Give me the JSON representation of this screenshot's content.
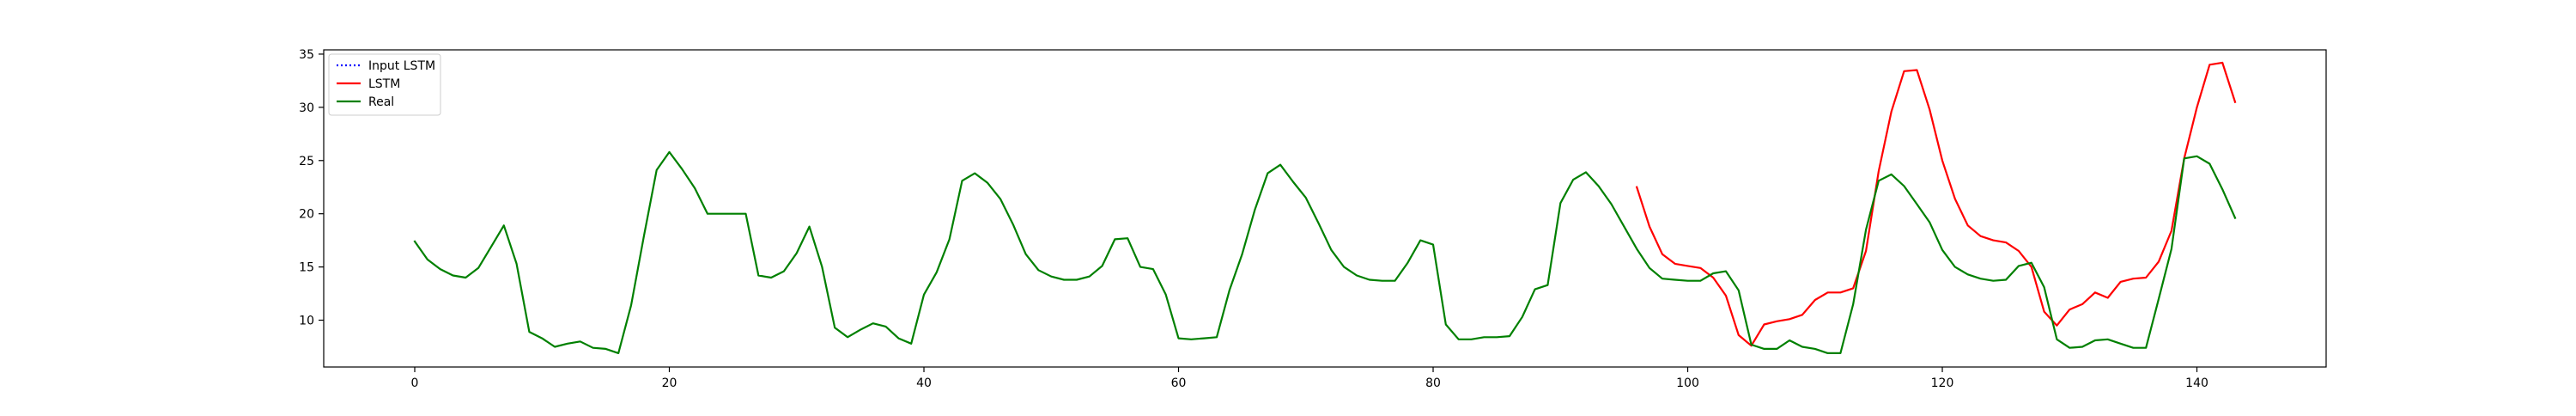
{
  "chart_data": {
    "type": "line",
    "title": "",
    "xlabel": "",
    "ylabel": "",
    "xlim": [
      -7.15,
      150.15
    ],
    "ylim": [
      5.6,
      35.4
    ],
    "x_ticks": [
      0,
      20,
      40,
      60,
      80,
      100,
      120,
      140
    ],
    "y_ticks": [
      10,
      15,
      20,
      25,
      30,
      35
    ],
    "grid": false,
    "legend": {
      "placement": "top-left"
    },
    "series": [
      {
        "name": "Input LSTM",
        "color": "#0000ff",
        "style": "dotted",
        "x": [],
        "y": []
      },
      {
        "name": "LSTM",
        "color": "#ff0000",
        "style": "solid",
        "x": [
          96,
          97,
          98,
          99,
          100,
          101,
          102,
          103,
          104,
          105,
          106,
          107,
          108,
          109,
          110,
          111,
          112,
          113,
          114,
          115,
          116,
          117,
          118,
          119,
          120,
          121,
          122,
          123,
          124,
          125,
          126,
          127,
          128,
          129,
          130,
          131,
          132,
          133,
          134,
          135,
          136,
          137,
          138,
          139,
          140,
          141,
          142,
          143
        ],
        "y": [
          22.5,
          18.8,
          16.2,
          15.3,
          15.1,
          14.9,
          14.0,
          12.3,
          8.6,
          7.6,
          9.6,
          9.9,
          10.1,
          10.5,
          11.9,
          12.6,
          12.6,
          13.0,
          16.5,
          24.0,
          29.6,
          33.4,
          33.5,
          29.8,
          25.0,
          21.4,
          18.9,
          17.9,
          17.5,
          17.3,
          16.5,
          15.0,
          10.8,
          9.5,
          11.0,
          11.5,
          12.6,
          12.1,
          13.6,
          13.9,
          14.0,
          15.5,
          18.4,
          25.2,
          30.0,
          34.0,
          34.2,
          30.5
        ]
      },
      {
        "name": "Real",
        "color": "#008000",
        "style": "solid",
        "x": [
          0,
          1,
          2,
          3,
          4,
          5,
          6,
          7,
          8,
          9,
          10,
          11,
          12,
          13,
          14,
          15,
          16,
          17,
          18,
          19,
          20,
          21,
          22,
          23,
          24,
          25,
          26,
          27,
          28,
          29,
          30,
          31,
          32,
          33,
          34,
          35,
          36,
          37,
          38,
          39,
          40,
          41,
          42,
          43,
          44,
          45,
          46,
          47,
          48,
          49,
          50,
          51,
          52,
          53,
          54,
          55,
          56,
          57,
          58,
          59,
          60,
          61,
          62,
          63,
          64,
          65,
          66,
          67,
          68,
          69,
          70,
          71,
          72,
          73,
          74,
          75,
          76,
          77,
          78,
          79,
          80,
          81,
          82,
          83,
          84,
          85,
          86,
          87,
          88,
          89,
          90,
          91,
          92,
          93,
          94,
          95,
          96,
          97,
          98,
          99,
          100,
          101,
          102,
          103,
          104,
          105,
          106,
          107,
          108,
          109,
          110,
          111,
          112,
          113,
          114,
          115,
          116,
          117,
          118,
          119,
          120,
          121,
          122,
          123,
          124,
          125,
          126,
          127,
          128,
          129,
          130,
          131,
          132,
          133,
          134,
          135,
          136,
          137,
          138,
          139,
          140,
          141,
          142,
          143
        ],
        "y": [
          17.4,
          15.7,
          14.8,
          14.2,
          14.0,
          14.9,
          16.9,
          18.9,
          15.3,
          8.9,
          8.3,
          7.5,
          7.8,
          8.0,
          7.4,
          7.3,
          6.9,
          11.4,
          17.9,
          24.1,
          25.8,
          24.2,
          22.4,
          20.0,
          20.0,
          20.0,
          20.0,
          14.2,
          14.0,
          14.6,
          16.3,
          18.8,
          15.0,
          9.3,
          8.4,
          9.1,
          9.7,
          9.4,
          8.3,
          7.8,
          12.4,
          14.5,
          17.6,
          23.1,
          23.8,
          22.9,
          21.4,
          19.0,
          16.2,
          14.7,
          14.1,
          13.8,
          13.8,
          14.1,
          15.1,
          17.6,
          17.7,
          15.0,
          14.8,
          12.4,
          8.3,
          8.2,
          8.3,
          8.4,
          12.8,
          16.2,
          20.4,
          23.8,
          24.6,
          23.0,
          21.5,
          19.1,
          16.6,
          15.0,
          14.2,
          13.8,
          13.7,
          13.7,
          15.4,
          17.5,
          17.1,
          9.6,
          8.2,
          8.2,
          8.4,
          8.4,
          8.5,
          10.3,
          12.9,
          13.3,
          21.0,
          23.2,
          23.9,
          22.6,
          20.9,
          18.8,
          16.7,
          14.9,
          13.9,
          13.8,
          13.7,
          13.7,
          14.4,
          14.6,
          12.8,
          7.7,
          7.3,
          7.3,
          8.1,
          7.5,
          7.3,
          6.9,
          6.9,
          11.5,
          18.5,
          23.1,
          23.7,
          22.6,
          20.9,
          19.2,
          16.6,
          15.0,
          14.3,
          13.9,
          13.7,
          13.8,
          15.1,
          15.4,
          13.1,
          8.2,
          7.4,
          7.5,
          8.1,
          8.2,
          7.8,
          7.4,
          7.4,
          12.0,
          16.7,
          25.2,
          25.4,
          24.7,
          22.3,
          19.6
        ]
      }
    ]
  }
}
